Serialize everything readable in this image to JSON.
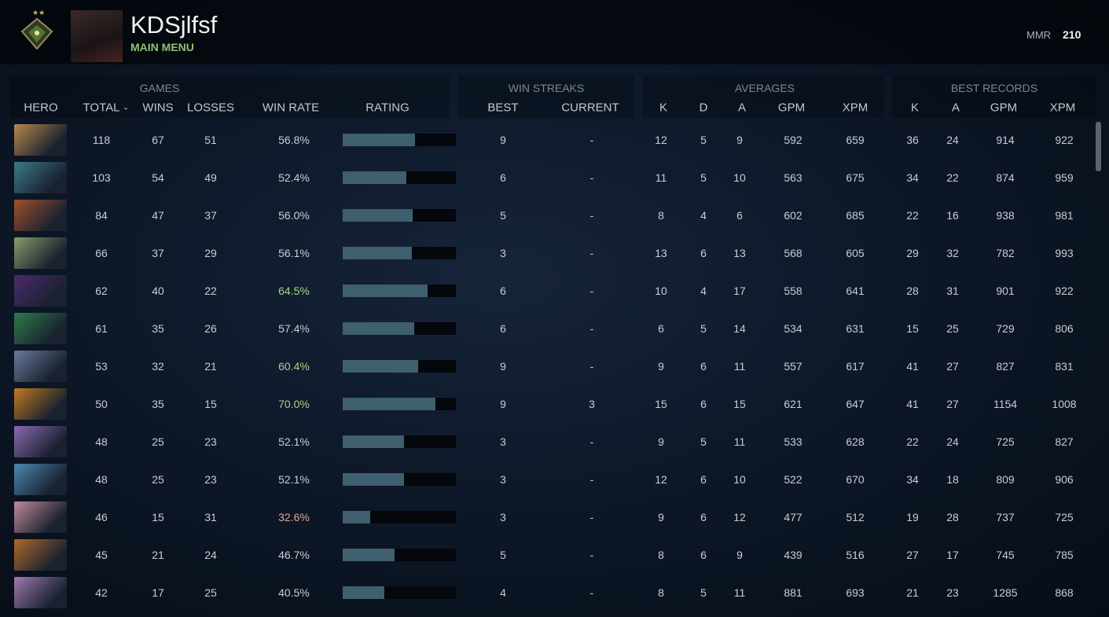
{
  "header": {
    "name": "KDSjlfsf",
    "menu": "MAIN MENU",
    "mmr_label": "MMR",
    "mmr": 210
  },
  "table": {
    "groups": [
      "GAMES",
      "WIN STREAKS",
      "AVERAGES",
      "BEST RECORDS"
    ],
    "columns": [
      "HERO",
      "TOTAL",
      "WINS",
      "LOSSES",
      "WIN RATE",
      "RATING",
      "BEST",
      "CURRENT",
      "K",
      "D",
      "A",
      "GPM",
      "XPM",
      "K",
      "A",
      "GPM",
      "XPM"
    ],
    "rows": [
      [
        118,
        67,
        51,
        "56.8%",
        9,
        "-",
        12,
        5,
        9,
        592,
        659,
        36,
        24,
        914,
        922
      ],
      [
        103,
        54,
        49,
        "52.4%",
        6,
        "-",
        11,
        5,
        10,
        563,
        675,
        34,
        22,
        874,
        959
      ],
      [
        84,
        47,
        37,
        "56.0%",
        5,
        "-",
        8,
        4,
        6,
        602,
        685,
        22,
        16,
        938,
        981
      ],
      [
        66,
        37,
        29,
        "56.1%",
        3,
        "-",
        13,
        6,
        13,
        568,
        605,
        29,
        32,
        782,
        993
      ],
      [
        62,
        40,
        22,
        "64.5%",
        6,
        "-",
        10,
        4,
        17,
        558,
        641,
        28,
        31,
        901,
        922
      ],
      [
        61,
        35,
        26,
        "57.4%",
        6,
        "-",
        6,
        5,
        14,
        534,
        631,
        15,
        25,
        729,
        806
      ],
      [
        53,
        32,
        21,
        "60.4%",
        9,
        "-",
        9,
        6,
        11,
        557,
        617,
        41,
        27,
        827,
        831
      ],
      [
        50,
        35,
        15,
        "70.0%",
        9,
        3,
        15,
        6,
        15,
        621,
        647,
        41,
        27,
        1154,
        1008
      ],
      [
        48,
        25,
        23,
        "52.1%",
        3,
        "-",
        9,
        5,
        11,
        533,
        628,
        22,
        24,
        725,
        827
      ],
      [
        48,
        25,
        23,
        "52.1%",
        3,
        "-",
        12,
        6,
        10,
        522,
        670,
        34,
        18,
        809,
        906
      ],
      [
        46,
        15,
        31,
        "32.6%",
        3,
        "-",
        9,
        6,
        12,
        477,
        512,
        19,
        28,
        737,
        725
      ],
      [
        45,
        21,
        24,
        "46.7%",
        5,
        "-",
        8,
        6,
        9,
        439,
        516,
        27,
        17,
        745,
        785
      ],
      [
        42,
        17,
        25,
        "40.5%",
        4,
        "-",
        8,
        5,
        11,
        881,
        693,
        21,
        23,
        1285,
        868
      ]
    ],
    "ratings": [
      64,
      56,
      62,
      61,
      75,
      63,
      67,
      82,
      54,
      54,
      24,
      46,
      37
    ],
    "rating_lim": [
      0,
      100
    ],
    "rating_color": "#3f5f6e",
    "win_rate_colors": [
      "#c9ced3",
      "#c9ced3",
      "#c9ced3",
      "#c9ced3",
      "#a8d48c",
      "#c9ced3",
      "#a8d48c",
      "#a8d48c",
      "#c9ced3",
      "#c9ced3",
      "#dcaaa2",
      "#c9ced3",
      "#c9ced3"
    ]
  }
}
